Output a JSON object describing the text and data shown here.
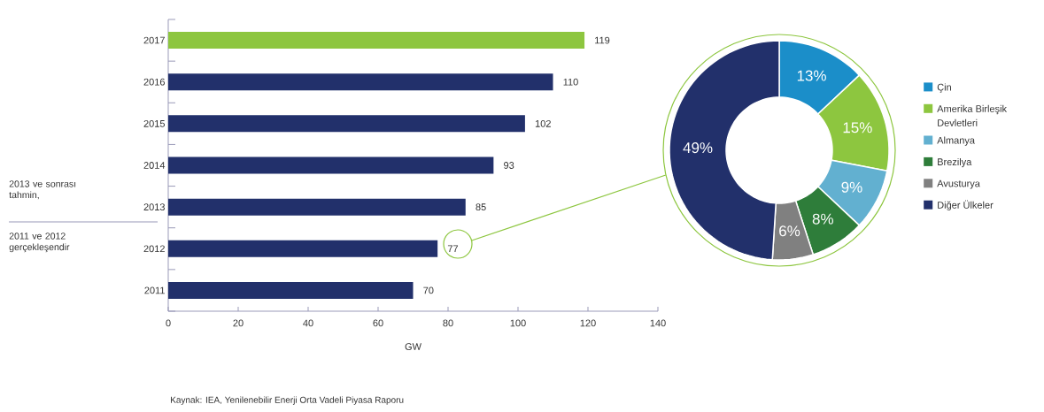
{
  "chart_data": [
    {
      "type": "bar",
      "orientation": "horizontal",
      "categories": [
        "2017",
        "2016",
        "2015",
        "2014",
        "2013",
        "2012",
        "2011"
      ],
      "values": [
        119,
        110,
        102,
        93,
        85,
        77,
        70
      ],
      "colors": [
        "#8dc63f",
        "#22306b",
        "#22306b",
        "#22306b",
        "#22306b",
        "#22306b",
        "#22306b"
      ],
      "data_labels": true,
      "xlabel": "GW",
      "xlim": [
        0,
        140
      ],
      "xticks": [
        0,
        20,
        40,
        60,
        80,
        100,
        120,
        140
      ],
      "annotations": [
        "2013 ve sonrası tahmin,",
        "2011 ve 2012 gerçekleşendir",
        "Kaynak: IEA, Yenilenebilir Enerji Orta Vadeli Piyasa Raporu"
      ]
    },
    {
      "type": "donut",
      "categories": [
        "Çin",
        "Amerika Birleşik Devletleri",
        "Almanya",
        "Brezilya",
        "Avusturya",
        "Diğer Ülkeler"
      ],
      "values": [
        13,
        15,
        9,
        8,
        6,
        49
      ],
      "value_labels": [
        "13%",
        "15%",
        "9%",
        "8%",
        "6%",
        "49%"
      ],
      "colors": [
        "#1b8ec9",
        "#8dc63f",
        "#62b0d0",
        "#2e7d3a",
        "#808080",
        "#22306b"
      ],
      "legend": "right"
    }
  ]
}
